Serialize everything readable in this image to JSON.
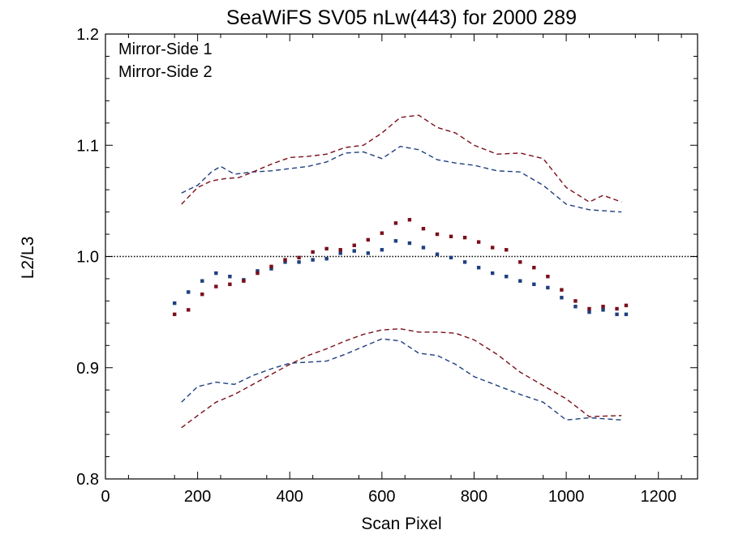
{
  "chart_data": {
    "type": "scatter",
    "title": "SeaWiFS SV05 nLw(443) for 2000 289",
    "xlabel": "Scan Pixel",
    "ylabel": "L2/L3",
    "xlim": [
      0,
      1285
    ],
    "ylim": [
      0.8,
      1.2
    ],
    "x_ticks": [
      "0",
      "200",
      "400",
      "600",
      "800",
      "1000",
      "1200"
    ],
    "y_ticks": [
      "0.8",
      "0.9",
      "1.0",
      "1.1",
      "1.2"
    ],
    "reference_line": {
      "y": 1.0,
      "style": "dotted"
    },
    "legend_position": "top-left",
    "series": [
      {
        "name": "Mirror-Side 1",
        "color": "#1f3f7f",
        "points_x": [
          150,
          180,
          210,
          240,
          270,
          300,
          330,
          360,
          390,
          420,
          450,
          480,
          510,
          540,
          570,
          600,
          630,
          660,
          690,
          720,
          750,
          780,
          810,
          840,
          870,
          900,
          930,
          960,
          990,
          1020,
          1050,
          1080,
          1110,
          1130
        ],
        "points_y": [
          0.958,
          0.968,
          0.978,
          0.985,
          0.982,
          0.979,
          0.987,
          0.989,
          0.995,
          0.995,
          0.997,
          0.998,
          1.003,
          1.005,
          1.003,
          1.006,
          1.014,
          1.012,
          1.008,
          1.002,
          0.999,
          0.995,
          0.99,
          0.985,
          0.982,
          0.978,
          0.975,
          0.972,
          0.963,
          0.955,
          0.95,
          0.952,
          0.948,
          0.948
        ],
        "upper_x": [
          165,
          200,
          230,
          250,
          280,
          320,
          360,
          400,
          440,
          480,
          520,
          560,
          600,
          640,
          680,
          720,
          760,
          800,
          850,
          900,
          950,
          1000,
          1050,
          1120
        ],
        "upper_y": [
          1.057,
          1.064,
          1.076,
          1.081,
          1.074,
          1.076,
          1.077,
          1.079,
          1.081,
          1.085,
          1.093,
          1.094,
          1.088,
          1.099,
          1.096,
          1.087,
          1.084,
          1.082,
          1.077,
          1.076,
          1.064,
          1.047,
          1.042,
          1.04
        ],
        "lower_x": [
          165,
          200,
          240,
          280,
          320,
          360,
          400,
          440,
          480,
          520,
          560,
          600,
          640,
          680,
          720,
          760,
          800,
          850,
          900,
          950,
          1000,
          1050,
          1120
        ],
        "lower_y": [
          0.869,
          0.883,
          0.887,
          0.885,
          0.893,
          0.899,
          0.904,
          0.905,
          0.906,
          0.912,
          0.919,
          0.926,
          0.924,
          0.913,
          0.911,
          0.903,
          0.892,
          0.884,
          0.876,
          0.869,
          0.853,
          0.855,
          0.853
        ]
      },
      {
        "name": "Mirror-Side 2",
        "color": "#7a0f1a",
        "points_x": [
          150,
          180,
          210,
          240,
          270,
          300,
          330,
          360,
          390,
          420,
          450,
          480,
          510,
          540,
          570,
          600,
          630,
          660,
          690,
          720,
          750,
          780,
          810,
          840,
          870,
          900,
          930,
          960,
          990,
          1020,
          1050,
          1080,
          1110,
          1130
        ],
        "points_y": [
          0.948,
          0.952,
          0.966,
          0.973,
          0.975,
          0.978,
          0.985,
          0.991,
          0.997,
          0.999,
          1.004,
          1.007,
          1.006,
          1.01,
          1.015,
          1.021,
          1.03,
          1.033,
          1.025,
          1.02,
          1.018,
          1.017,
          1.013,
          1.008,
          1.006,
          0.995,
          0.99,
          0.982,
          0.97,
          0.96,
          0.953,
          0.955,
          0.953,
          0.956
        ],
        "upper_x": [
          165,
          200,
          230,
          260,
          290,
          320,
          360,
          400,
          440,
          480,
          520,
          560,
          600,
          640,
          680,
          720,
          760,
          800,
          850,
          900,
          950,
          1000,
          1050,
          1080,
          1120
        ],
        "upper_y": [
          1.047,
          1.062,
          1.068,
          1.07,
          1.071,
          1.076,
          1.083,
          1.089,
          1.09,
          1.092,
          1.098,
          1.1,
          1.111,
          1.125,
          1.127,
          1.116,
          1.111,
          1.1,
          1.092,
          1.093,
          1.088,
          1.062,
          1.049,
          1.055,
          1.049
        ],
        "lower_x": [
          165,
          200,
          240,
          280,
          320,
          360,
          400,
          440,
          480,
          520,
          560,
          600,
          640,
          680,
          720,
          760,
          800,
          850,
          900,
          950,
          1000,
          1050,
          1120
        ],
        "lower_y": [
          0.846,
          0.857,
          0.869,
          0.876,
          0.885,
          0.894,
          0.903,
          0.911,
          0.917,
          0.924,
          0.93,
          0.934,
          0.935,
          0.932,
          0.932,
          0.931,
          0.925,
          0.912,
          0.896,
          0.884,
          0.872,
          0.856,
          0.857
        ]
      }
    ]
  }
}
